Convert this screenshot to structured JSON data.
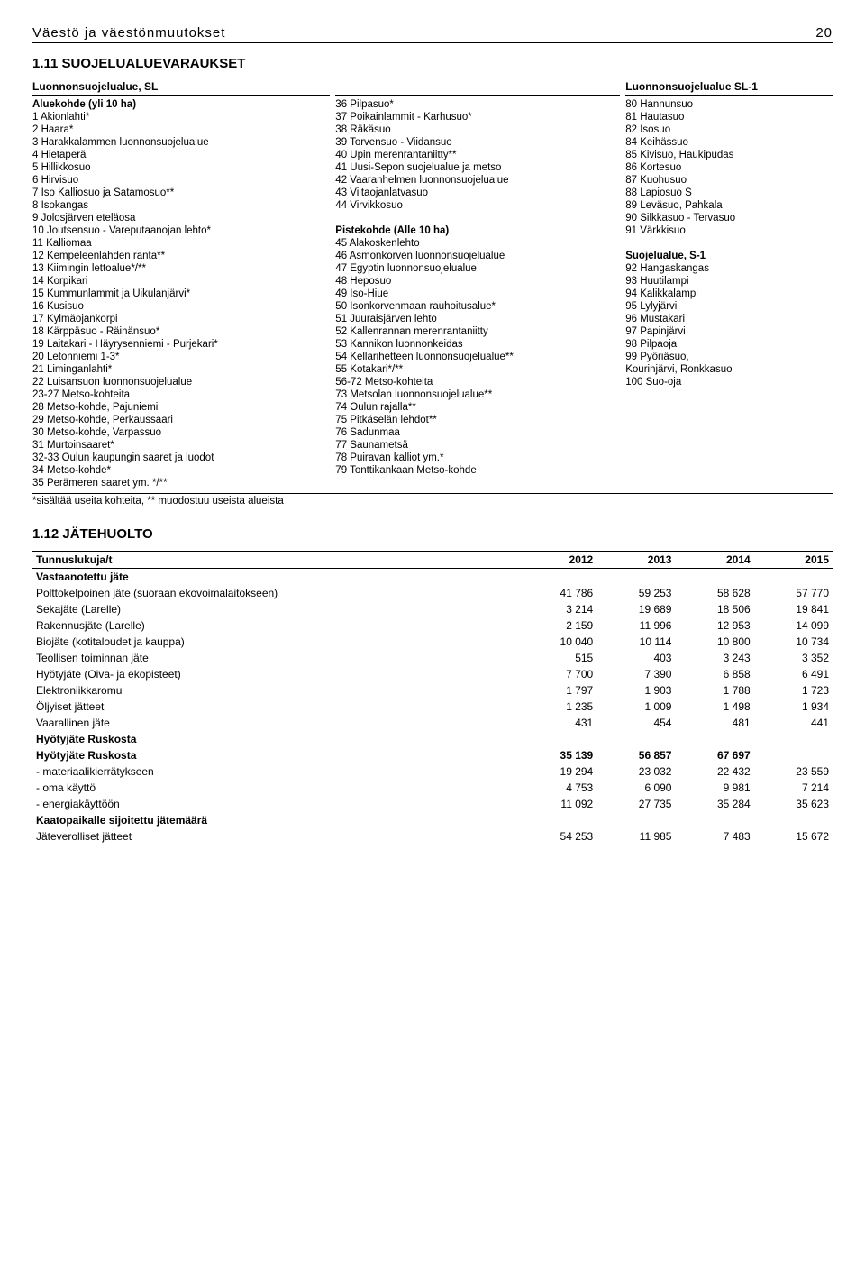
{
  "header": {
    "title": "Väestö ja väestönmuutokset",
    "page": "20"
  },
  "section1": {
    "title": "1.11 SUOJELUALUEVARAUKSET",
    "col1_header": "Luonnonsuojelualue, SL",
    "col1_sub": "Aluekohde (yli 10 ha)",
    "col1": [
      "1 Akionlahti*",
      "2 Haara*",
      "3 Harakkalammen luonnonsuojelualue",
      "4 Hietaperä",
      "5 Hillikkosuo",
      "6 Hirvisuo",
      "7 Iso Kalliosuo ja Satamosuo**",
      "8 Isokangas",
      "9 Jolosjärven eteläosa",
      "10 Joutsensuo - Vareputaanojan lehto*",
      "11 Kalliomaa",
      "12 Kempeleenlahden ranta**",
      "13 Kiimingin lettoalue*/**",
      "14 Korpikari",
      "15 Kummunlammit ja Uikulanjärvi*",
      "16 Kusisuo",
      "17 Kylmäojankorpi",
      "18 Kärppäsuo - Räinänsuo*",
      "19 Laitakari - Häyrysenniemi - Purjekari*",
      "20 Letonniemi 1-3*",
      "21 Liminganlahti*",
      "22 Luisansuon luonnonsuojelualue",
      "23-27 Metso-kohteita",
      "28 Metso-kohde, Pajuniemi",
      "29 Metso-kohde, Perkaussaari",
      "30 Metso-kohde, Varpassuo",
      "31 Murtoinsaaret*",
      "32-33 Oulun kaupungin saaret ja luodot",
      "34 Metso-kohde*",
      "35 Perämeren saaret ym. */**"
    ],
    "col2_top": [
      "36 Pilpasuo*",
      "37 Poikainlammit - Karhusuo*",
      "38 Räkäsuo",
      "39 Torvensuo - Viidansuo",
      "40 Upin merenrantaniitty**",
      "41 Uusi-Sepon suojelualue ja metso",
      "42 Vaaranhelmen luonnonsuojelualue",
      "43 Viitaojanlatvasuo",
      "44 Virvikkosuo"
    ],
    "col2_sub": "Pistekohde (Alle 10 ha)",
    "col2_bottom": [
      "45 Alakoskenlehto",
      "46 Asmonkorven luonnonsuojelualue",
      "47 Egyptin luonnonsuojelualue",
      "48 Heposuo",
      "49 Iso-Hiue",
      "50 Isonkorvenmaan rauhoitusalue*",
      "51 Juuraisjärven lehto",
      "52 Kallenrannan merenrantaniitty",
      "53 Kannikon luonnonkeidas",
      "54 Kellarihetteen luonnonsuojelualue**",
      "55 Kotakari*/**",
      "56-72 Metso-kohteita",
      "73 Metsolan luonnonsuojelualue**",
      "74 Oulun rajalla**",
      "75 Pitkäselän lehdot**",
      "76 Sadunmaa",
      "77 Saunametsä",
      "78 Puiravan kalliot ym.*",
      "79 Tonttikankaan Metso-kohde"
    ],
    "col3_header": "Luonnonsuojelualue SL-1",
    "col3_top": [
      "80 Hannunsuo",
      "81 Hautasuo",
      "82 Isosuo",
      "84 Keihässuo",
      "85 Kivisuo, Haukipudas",
      "86 Kortesuo",
      "87 Kuohusuo",
      "88 Lapiosuo S",
      "89 Leväsuo, Pahkala",
      "90 Silkkasuo - Tervasuo",
      "91 Värkkisuo"
    ],
    "col3_sub": "Suojelualue, S-1",
    "col3_bottom": [
      "92 Hangaskangas",
      "93 Huutilampi",
      "94 Kalikkalampi",
      "95 Lylyjärvi",
      "96 Mustakari",
      "97 Papinjärvi",
      "98 Pilpaoja",
      "99 Pyöriäsuo,",
      "     Kourinjärvi, Ronkkasuo",
      "100 Suo-oja"
    ],
    "footnote": "*sisältää useita kohteita, ** muodostuu useista alueista"
  },
  "section2": {
    "title": "1.12 JÄTEHUOLTO",
    "col_headers": [
      "Tunnuslukuja/t",
      "2012",
      "2013",
      "2014",
      "2015"
    ],
    "group1": {
      "label": "Vastaanotettu jäte",
      "rows": [
        {
          "label": "Polttokelpoinen jäte (suoraan ekovoimalaitokseen)",
          "v": [
            "41 786",
            "59 253",
            "58 628",
            "57 770"
          ]
        },
        {
          "label": "Sekajäte (Larelle)",
          "v": [
            "3 214",
            "19 689",
            "18 506",
            "19 841"
          ]
        },
        {
          "label": "Rakennusjäte (Larelle)",
          "v": [
            "2 159",
            "11 996",
            "12 953",
            "14 099"
          ]
        },
        {
          "label": "Biojäte (kotitaloudet ja kauppa)",
          "v": [
            "10 040",
            "10 114",
            "10 800",
            "10 734"
          ]
        },
        {
          "label": "Teollisen toiminnan jäte",
          "v": [
            "515",
            "403",
            "3 243",
            "3 352"
          ]
        },
        {
          "label": "Hyötyjäte (Oiva- ja ekopisteet)",
          "v": [
            "7 700",
            "7 390",
            "6 858",
            "6 491"
          ]
        },
        {
          "label": "Elektroniikkaromu",
          "v": [
            "1 797",
            "1 903",
            "1 788",
            "1 723"
          ]
        },
        {
          "label": "Öljyiset jätteet",
          "v": [
            "1 235",
            "1 009",
            "1 498",
            "1 934"
          ]
        },
        {
          "label": "Vaarallinen jäte",
          "v": [
            "431",
            "454",
            "481",
            "441"
          ]
        }
      ]
    },
    "group2": {
      "label": "Hyötyjäte Ruskosta",
      "header_row": {
        "label": "Hyötyjäte Ruskosta",
        "v": [
          "35 139",
          "56 857",
          "67 697",
          ""
        ]
      },
      "rows": [
        {
          "label": " - materiaalikierrätykseen",
          "v": [
            "19 294",
            "23 032",
            "22 432",
            "23 559"
          ]
        },
        {
          "label": " - oma käyttö",
          "v": [
            "4 753",
            "6 090",
            "9 981",
            "7 214"
          ]
        },
        {
          "label": " - energiakäyttöön",
          "v": [
            "11 092",
            "27 735",
            "35 284",
            "35 623"
          ]
        }
      ]
    },
    "group3": {
      "label": "Kaatopaikalle sijoitettu jätemäärä",
      "rows": [
        {
          "label": "Jäteverolliset jätteet",
          "v": [
            "54 253",
            "11 985",
            "7 483",
            "15 672"
          ]
        }
      ]
    }
  }
}
